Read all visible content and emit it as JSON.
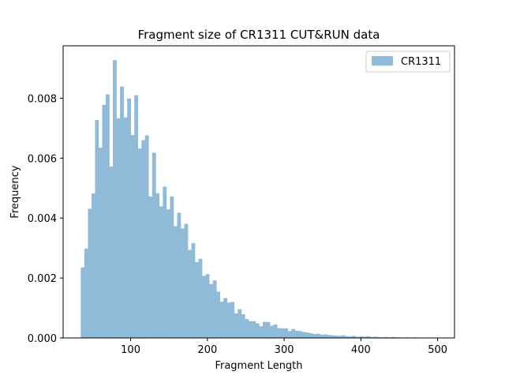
{
  "chart_data": {
    "type": "bar",
    "title": "Fragment size of CR1311 CUT&RUN data",
    "xlabel": "Fragment Length",
    "ylabel": "Frequency",
    "xlim": [
      12,
      522
    ],
    "ylim": [
      0,
      0.00975
    ],
    "xticks": [
      100,
      200,
      300,
      400,
      500
    ],
    "xtick_labels": [
      "100",
      "200",
      "300",
      "400",
      "500"
    ],
    "yticks": [
      0.0,
      0.002,
      0.004,
      0.006,
      0.008
    ],
    "ytick_labels": [
      "0.000",
      "0.002",
      "0.004",
      "0.006",
      "0.008"
    ],
    "grid": false,
    "legend_position": "top-right",
    "bar_color": "#8fbad8",
    "series": [
      {
        "name": "CR1311",
        "bin_start": 35,
        "bin_width": 4.65,
        "values": [
          0.00235,
          0.00298,
          0.00431,
          0.00482,
          0.00727,
          0.00635,
          0.00778,
          0.00813,
          0.00572,
          0.00927,
          0.00733,
          0.00839,
          0.00736,
          0.00799,
          0.00677,
          0.0081,
          0.00632,
          0.0066,
          0.00676,
          0.00472,
          0.00618,
          0.00483,
          0.00439,
          0.00505,
          0.00429,
          0.00472,
          0.00373,
          0.00418,
          0.00365,
          0.00381,
          0.00294,
          0.00316,
          0.00253,
          0.00264,
          0.00207,
          0.00213,
          0.0018,
          0.00192,
          0.00154,
          0.00121,
          0.00133,
          0.00118,
          0.0012,
          0.00082,
          0.00096,
          0.00079,
          0.00063,
          0.00056,
          0.00056,
          0.00049,
          0.00039,
          0.00054,
          0.00053,
          0.00041,
          0.00045,
          0.00033,
          0.00032,
          0.00032,
          0.00023,
          0.0003,
          0.00024,
          0.00023,
          0.0002,
          0.00018,
          0.00016,
          0.00013,
          0.00014,
          0.00011,
          0.00012,
          0.0001,
          9e-05,
          8e-05,
          7e-05,
          9e-05,
          6e-05,
          5e-05,
          7e-05,
          4e-05,
          5e-05,
          4e-05,
          6e-05,
          3e-05,
          4e-05,
          3e-05,
          2e-05,
          3e-05,
          2e-05,
          3e-05,
          2e-05,
          2e-05,
          1e-05,
          2e-05,
          1e-05,
          2e-05,
          1e-05,
          1e-05,
          1e-05,
          1e-05,
          1e-05,
          1e-05
        ]
      }
    ]
  }
}
